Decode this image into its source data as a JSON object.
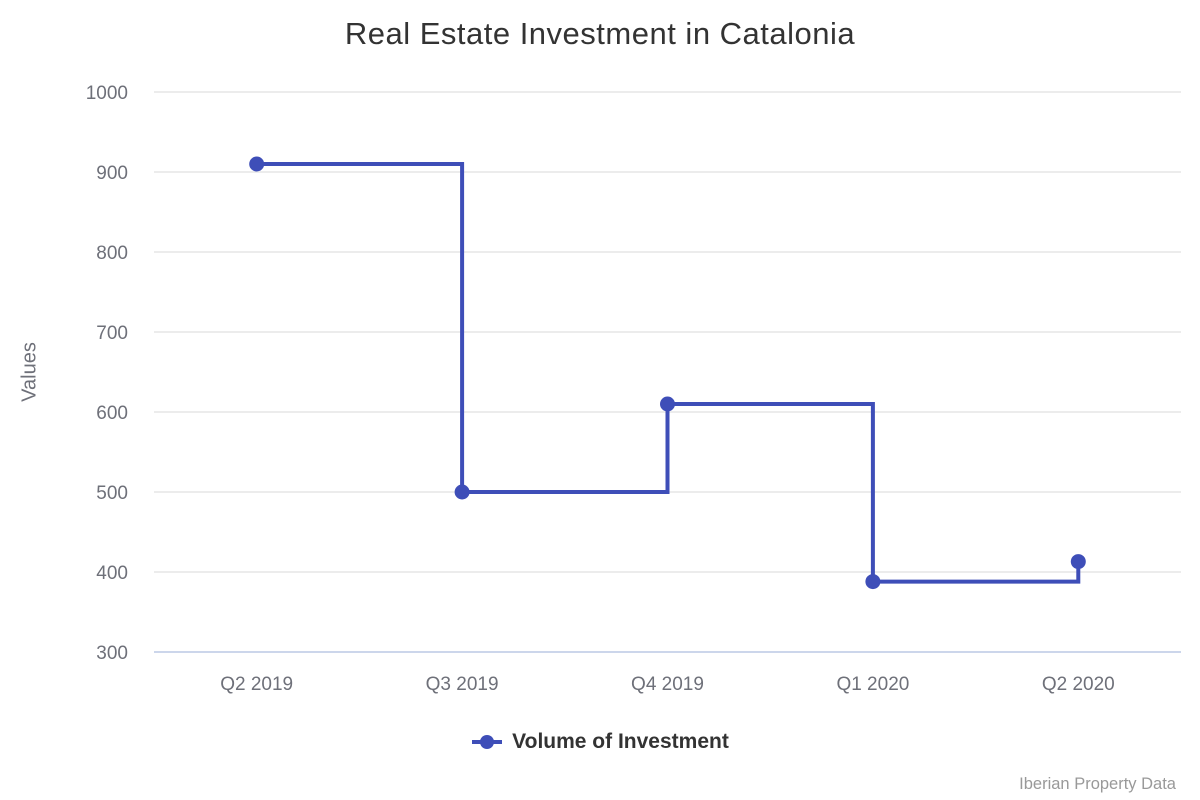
{
  "source": "Iberian Property Data",
  "colors": {
    "line": "#3e4eb8",
    "grid": "#e6e6e6",
    "axis_line": "#ccd6eb",
    "tick_text": "#6e7079",
    "title_text": "#333333",
    "legend_text": "#333333",
    "source_text": "#999999"
  },
  "chart_data": {
    "type": "line",
    "subtype": "step-after",
    "title": "Real Estate Investment in Catalonia",
    "xlabel": "",
    "ylabel": "Values",
    "categories": [
      "Q2 2019",
      "Q3 2019",
      "Q4 2019",
      "Q1 2020",
      "Q2 2020"
    ],
    "series": [
      {
        "name": "Volume of Investment",
        "values": [
          910,
          500,
          610,
          388,
          413
        ]
      }
    ],
    "ylim": [
      300,
      1000
    ],
    "y_ticks": [
      300,
      400,
      500,
      600,
      700,
      800,
      900,
      1000
    ],
    "grid": true,
    "legend_position": "bottom",
    "marker": "circle",
    "line_width": 4,
    "marker_radius": 7.5
  }
}
